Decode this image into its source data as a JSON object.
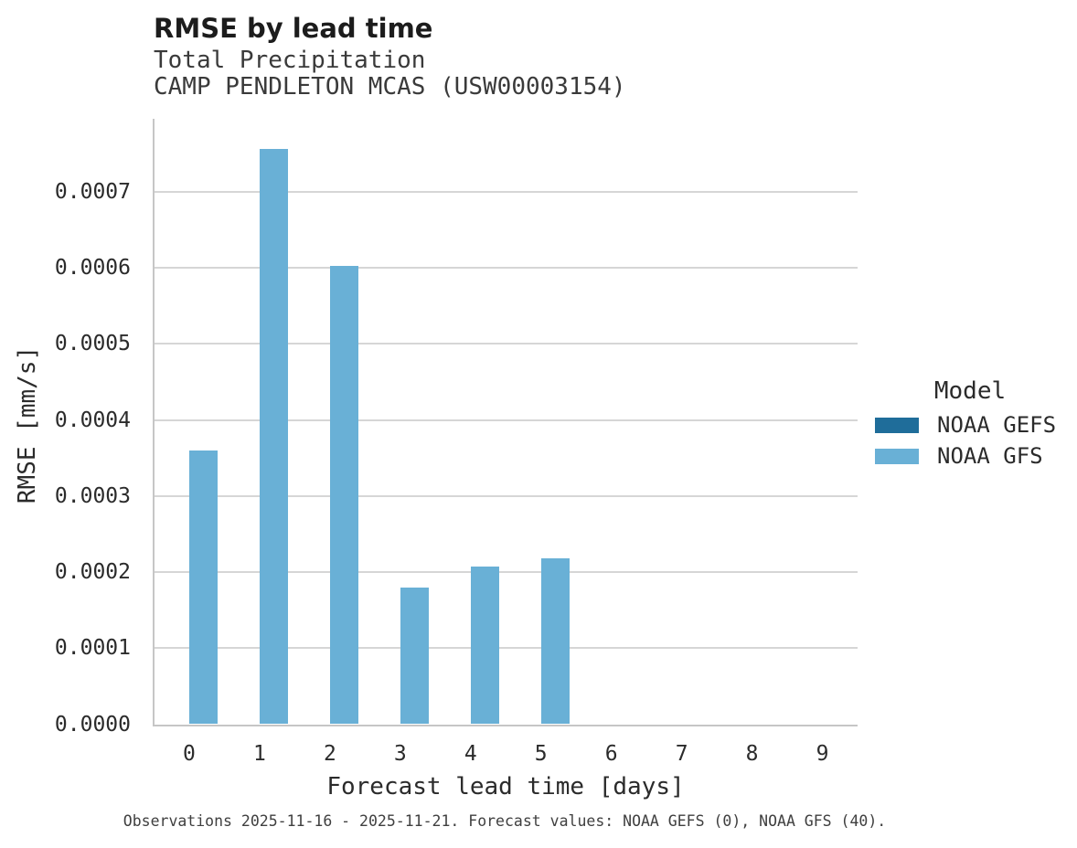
{
  "header": {
    "title": "RMSE by lead time",
    "subtitle": "Total Precipitation",
    "station": "CAMP PENDLETON MCAS (USW00003154)"
  },
  "axes": {
    "y_title": "RMSE [mm/s]",
    "x_title": "Forecast lead time [days]",
    "y_tick_labels": [
      "0.0000",
      "0.0001",
      "0.0002",
      "0.0003",
      "0.0004",
      "0.0005",
      "0.0006",
      "0.0007"
    ],
    "x_tick_labels": [
      "0",
      "1",
      "2",
      "3",
      "4",
      "5",
      "6",
      "7",
      "8",
      "9"
    ]
  },
  "legend": {
    "title": "Model",
    "items": [
      {
        "label": "NOAA GEFS",
        "color": "#1f6d9a"
      },
      {
        "label": "NOAA GFS",
        "color": "#69b0d6"
      }
    ]
  },
  "footer": {
    "caption": "Observations 2025-11-16 - 2025-11-21. Forecast values: NOAA GEFS (0), NOAA GFS (40)."
  },
  "chart_data": {
    "type": "bar",
    "title": "RMSE by lead time",
    "subtitle": "Total Precipitation",
    "station": "CAMP PENDLETON MCAS (USW00003154)",
    "xlabel": "Forecast lead time [days]",
    "ylabel": "RMSE [mm/s]",
    "categories": [
      0,
      1,
      2,
      3,
      4,
      5,
      6,
      7,
      8,
      9
    ],
    "series": [
      {
        "name": "NOAA GEFS",
        "color": "#1f6d9a",
        "values": [
          0,
          0,
          0,
          0,
          0,
          0,
          0,
          0,
          0,
          0
        ]
      },
      {
        "name": "NOAA GFS",
        "color": "#69b0d6",
        "values": [
          0.00036,
          0.000756,
          0.000602,
          0.00018,
          0.000207,
          0.000218,
          0,
          0,
          0,
          0
        ]
      }
    ],
    "yticks": [
      0.0,
      0.0001,
      0.0002,
      0.0003,
      0.0004,
      0.0005,
      0.0006,
      0.0007
    ],
    "ylim": [
      0,
      0.000796
    ],
    "grid": "horizontal",
    "legend_position": "right",
    "legend_title": "Model",
    "caption": "Observations 2025-11-16 - 2025-11-21. Forecast values: NOAA GEFS (0), NOAA GFS (40)."
  },
  "style": {
    "bar_color_noaa_gfs": "#69b0d6",
    "bar_color_noaa_gefs": "#1f6d9a",
    "gridline_color": "#d6d6d6",
    "axis_line_color": "#c6c6c6",
    "text_color": "#2b2b2b",
    "footer_color": "#3f3f3f"
  }
}
